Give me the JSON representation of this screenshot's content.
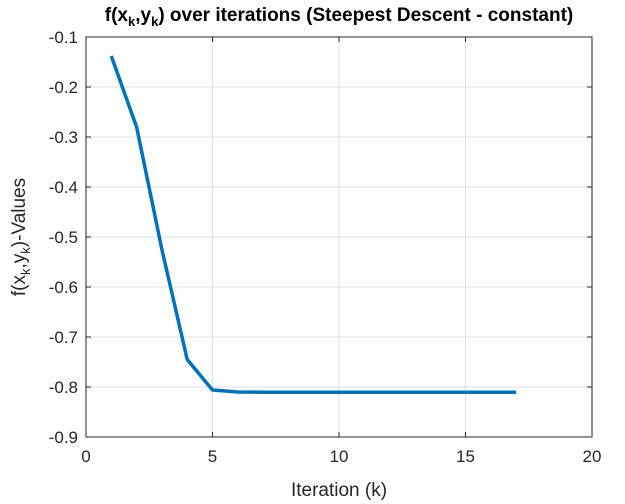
{
  "chart_data": {
    "type": "line",
    "title": {
      "prefix": "f(x",
      "sub1": "k",
      "mid": ",y",
      "sub2": "k",
      "suffix": ") over iterations (Steepest Descent - constant)"
    },
    "xlabel": "Iteration (k)",
    "ylabel": {
      "prefix": "f(x",
      "sub1": "k",
      "mid": ",y",
      "sub2": "k",
      "suffix": ")-Values"
    },
    "xlim": [
      0,
      20
    ],
    "ylim": [
      -0.9,
      -0.1
    ],
    "xticks": [
      0,
      5,
      10,
      15,
      20
    ],
    "xtick_labels": [
      "0",
      "5",
      "10",
      "15",
      "20"
    ],
    "yticks": [
      -0.1,
      -0.2,
      -0.3,
      -0.4,
      -0.5,
      -0.6,
      -0.7,
      -0.8,
      -0.9
    ],
    "ytick_labels": [
      "-0.1",
      "-0.2",
      "-0.3",
      "-0.4",
      "-0.5",
      "-0.6",
      "-0.7",
      "-0.8",
      "-0.9"
    ],
    "grid": true,
    "series": [
      {
        "color": "#0072BD",
        "x": [
          1,
          2,
          3,
          4,
          5,
          6,
          7,
          8,
          9,
          10,
          11,
          12,
          13,
          14,
          15,
          16,
          17
        ],
        "y": [
          -0.138,
          -0.28,
          -0.525,
          -0.745,
          -0.806,
          -0.81,
          -0.8105,
          -0.8105,
          -0.8105,
          -0.8105,
          -0.8105,
          -0.8105,
          -0.8105,
          -0.8105,
          -0.8105,
          -0.8105,
          -0.8105
        ]
      }
    ]
  }
}
